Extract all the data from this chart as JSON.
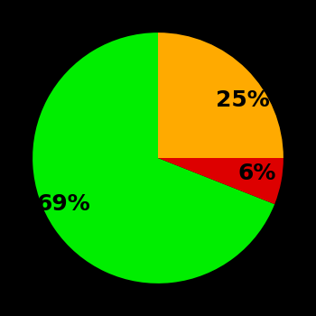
{
  "slices": [
    69,
    6,
    25
  ],
  "labels": [
    "69%",
    "6%",
    "25%"
  ],
  "colors": [
    "#00ee00",
    "#dd0000",
    "#ffaa00"
  ],
  "startangle": 90,
  "counterclock": true,
  "background_color": "#000000",
  "label_fontsize": 18,
  "label_fontweight": "bold",
  "labeldistance": 0.65
}
